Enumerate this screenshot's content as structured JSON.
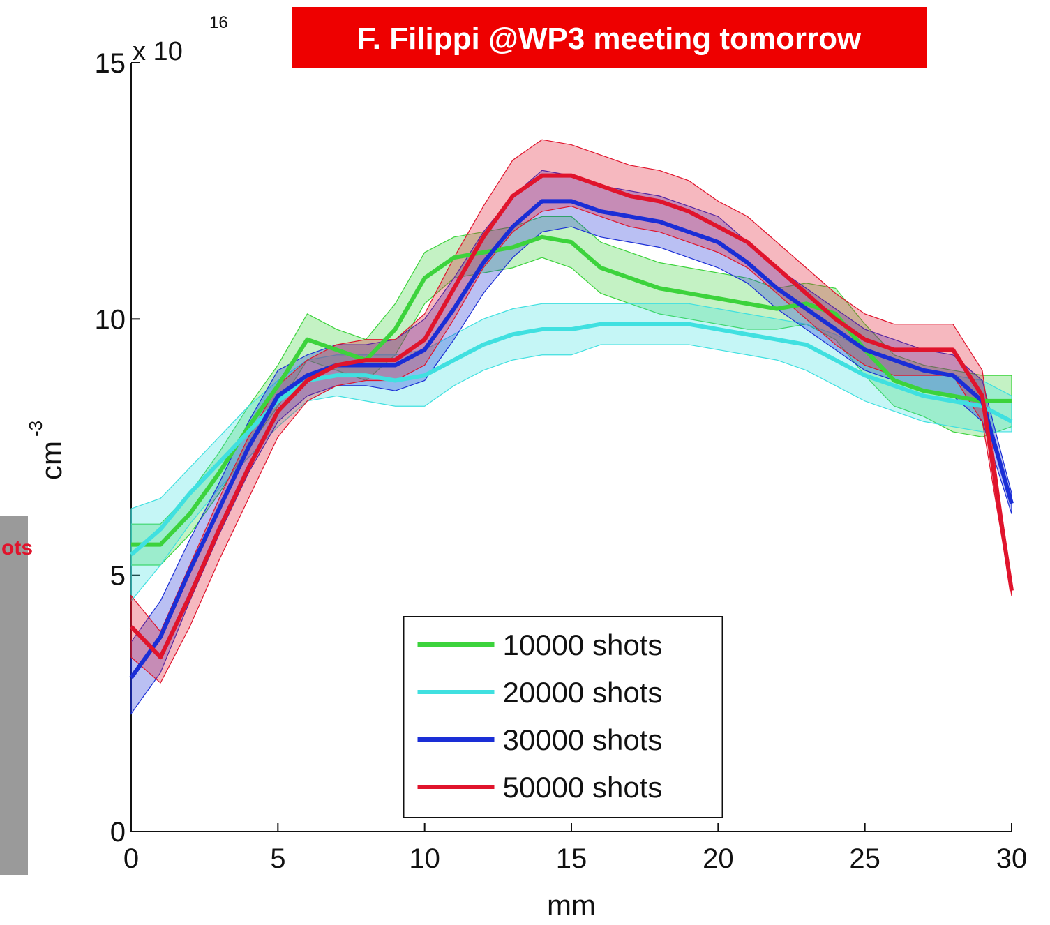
{
  "side_panel": {
    "text": "ots"
  },
  "chart_data": {
    "type": "line",
    "banner": "F. Filippi @WP3 meeting tomorrow",
    "xlabel": "mm",
    "ylabel": "cm",
    "ylabel_exponent": "-3",
    "y_multiplier": "x 10",
    "y_multiplier_exponent": "16",
    "x": [
      0,
      1,
      2,
      3,
      4,
      5,
      6,
      7,
      8,
      9,
      10,
      11,
      12,
      13,
      14,
      15,
      16,
      17,
      18,
      19,
      20,
      21,
      22,
      23,
      24,
      25,
      26,
      27,
      28,
      29,
      30
    ],
    "xlim": [
      0,
      30
    ],
    "xticks": [
      0,
      5,
      10,
      15,
      20,
      25,
      30
    ],
    "ylim": [
      0,
      15
    ],
    "yticks": [
      0,
      5,
      10,
      15
    ],
    "legend": "lower center",
    "series": [
      {
        "name": "10000 shots",
        "color": "#3cd33c",
        "values": [
          5.6,
          5.6,
          6.2,
          7.0,
          7.9,
          8.7,
          9.6,
          9.4,
          9.2,
          9.8,
          10.8,
          11.2,
          11.3,
          11.4,
          11.6,
          11.5,
          11.0,
          10.8,
          10.6,
          10.5,
          10.4,
          10.3,
          10.2,
          10.3,
          10.1,
          9.4,
          8.8,
          8.6,
          8.5,
          8.4,
          8.4
        ],
        "lower": [
          5.2,
          5.2,
          5.8,
          6.6,
          7.5,
          8.3,
          9.2,
          9.0,
          8.8,
          9.3,
          10.3,
          10.8,
          10.9,
          11.0,
          11.2,
          11.0,
          10.5,
          10.3,
          10.1,
          10.0,
          9.9,
          9.8,
          9.8,
          9.9,
          9.6,
          8.9,
          8.3,
          8.1,
          7.8,
          7.7,
          7.9
        ],
        "upper": [
          6.0,
          6.0,
          6.6,
          7.4,
          8.3,
          9.1,
          10.1,
          9.8,
          9.6,
          10.3,
          11.3,
          11.6,
          11.7,
          11.8,
          12.0,
          12.0,
          11.5,
          11.3,
          11.1,
          11.0,
          10.9,
          10.8,
          10.6,
          10.7,
          10.6,
          9.9,
          9.3,
          9.1,
          9.0,
          8.9,
          8.9
        ]
      },
      {
        "name": "20000 shots",
        "color": "#40e0e0",
        "values": [
          5.4,
          5.9,
          6.6,
          7.2,
          7.8,
          8.4,
          8.8,
          8.9,
          8.9,
          8.8,
          8.9,
          9.2,
          9.5,
          9.7,
          9.8,
          9.8,
          9.9,
          9.9,
          9.9,
          9.9,
          9.8,
          9.7,
          9.6,
          9.5,
          9.2,
          8.9,
          8.7,
          8.5,
          8.4,
          8.3,
          8.0
        ],
        "lower": [
          4.5,
          5.2,
          6.0,
          6.7,
          7.3,
          7.9,
          8.4,
          8.5,
          8.4,
          8.3,
          8.3,
          8.7,
          9.0,
          9.2,
          9.3,
          9.3,
          9.5,
          9.5,
          9.5,
          9.5,
          9.4,
          9.3,
          9.2,
          9.0,
          8.7,
          8.4,
          8.2,
          8.0,
          7.9,
          7.8,
          7.8
        ],
        "upper": [
          6.3,
          6.5,
          7.1,
          7.7,
          8.3,
          8.8,
          9.2,
          9.3,
          9.3,
          9.3,
          9.4,
          9.7,
          10.0,
          10.2,
          10.3,
          10.3,
          10.3,
          10.3,
          10.3,
          10.3,
          10.2,
          10.1,
          10.0,
          9.9,
          9.7,
          9.4,
          9.2,
          9.0,
          8.9,
          8.8,
          8.5
        ]
      },
      {
        "name": "30000 shots",
        "color": "#1a2ed6",
        "values": [
          3.0,
          3.8,
          5.1,
          6.3,
          7.5,
          8.5,
          8.9,
          9.1,
          9.1,
          9.1,
          9.4,
          10.2,
          11.1,
          11.8,
          12.3,
          12.3,
          12.1,
          12.0,
          11.9,
          11.7,
          11.5,
          11.1,
          10.6,
          10.2,
          9.8,
          9.4,
          9.2,
          9.0,
          8.9,
          8.4,
          6.4
        ],
        "lower": [
          2.3,
          3.1,
          4.5,
          5.8,
          7.0,
          8.0,
          8.5,
          8.7,
          8.7,
          8.6,
          8.8,
          9.6,
          10.5,
          11.2,
          11.7,
          11.8,
          11.6,
          11.5,
          11.4,
          11.2,
          11.0,
          10.7,
          10.2,
          9.8,
          9.4,
          9.0,
          8.8,
          8.6,
          8.5,
          8.0,
          6.2
        ],
        "upper": [
          3.7,
          4.5,
          5.7,
          6.8,
          8.0,
          9.0,
          9.3,
          9.5,
          9.5,
          9.6,
          10.0,
          10.8,
          11.7,
          12.4,
          12.9,
          12.8,
          12.6,
          12.5,
          12.4,
          12.2,
          12.0,
          11.5,
          11.0,
          10.6,
          10.2,
          9.8,
          9.6,
          9.4,
          9.3,
          8.8,
          6.6
        ]
      },
      {
        "name": "50000 shots",
        "color": "#e0142c",
        "values": [
          4.0,
          3.4,
          4.6,
          5.9,
          7.1,
          8.2,
          8.8,
          9.1,
          9.2,
          9.2,
          9.6,
          10.6,
          11.6,
          12.4,
          12.8,
          12.8,
          12.6,
          12.4,
          12.3,
          12.1,
          11.8,
          11.5,
          11.0,
          10.5,
          10.0,
          9.6,
          9.4,
          9.4,
          9.4,
          8.5,
          4.7
        ],
        "lower": [
          3.4,
          2.9,
          4.0,
          5.3,
          6.5,
          7.7,
          8.4,
          8.7,
          8.8,
          8.8,
          9.1,
          10.0,
          11.0,
          11.7,
          12.1,
          12.2,
          12.0,
          11.8,
          11.7,
          11.5,
          11.3,
          11.0,
          10.5,
          10.0,
          9.5,
          9.1,
          8.9,
          8.9,
          8.9,
          8.0,
          4.6
        ],
        "upper": [
          4.6,
          3.9,
          5.2,
          6.5,
          7.7,
          8.7,
          9.2,
          9.5,
          9.6,
          9.6,
          10.1,
          11.2,
          12.2,
          13.1,
          13.5,
          13.4,
          13.2,
          13.0,
          12.9,
          12.7,
          12.3,
          12.0,
          11.5,
          11.0,
          10.5,
          10.1,
          9.9,
          9.9,
          9.9,
          9.0,
          4.8
        ]
      }
    ]
  }
}
